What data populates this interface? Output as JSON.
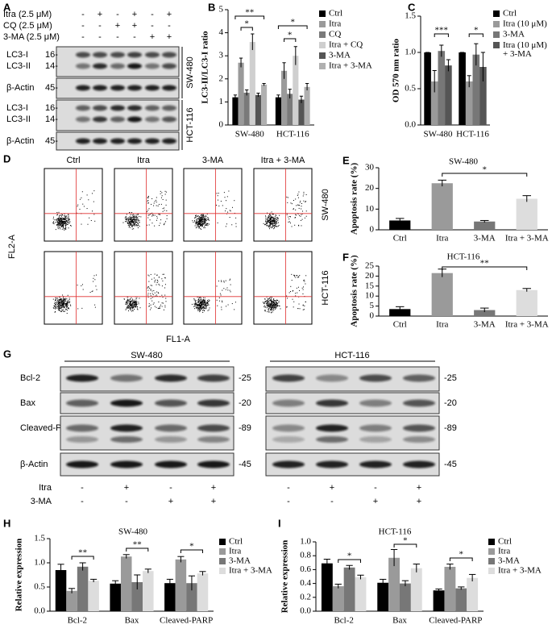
{
  "chart_data": [
    {
      "type": "bar",
      "label": "B",
      "ylabel": "LC3-II/LC3-I ratio",
      "categories": [
        "SW-480",
        "HCT-116"
      ],
      "ylim": [
        0,
        5
      ],
      "yticks": [
        0,
        1,
        2,
        3,
        4,
        5
      ],
      "series": [
        {
          "name": "Ctrl",
          "color": "#000000",
          "values": [
            1.2,
            1.2
          ],
          "errors": [
            0.1,
            0.1
          ]
        },
        {
          "name": "Itra",
          "color": "#9a9a9a",
          "values": [
            2.7,
            2.35
          ],
          "errors": [
            0.2,
            0.35
          ]
        },
        {
          "name": "CQ",
          "color": "#7a7a7a",
          "values": [
            1.4,
            1.35
          ],
          "errors": [
            0.12,
            0.2
          ]
        },
        {
          "name": "Itra + CQ",
          "color": "#cfcfcf",
          "values": [
            3.6,
            3.0
          ],
          "errors": [
            0.35,
            0.4
          ]
        },
        {
          "name": "3-MA",
          "color": "#555555",
          "values": [
            1.3,
            1.1
          ],
          "errors": [
            0.08,
            0.15
          ]
        },
        {
          "name": "Itra + 3-MA",
          "color": "#b0b0b0",
          "values": [
            1.75,
            1.65
          ],
          "errors": [
            0.05,
            0.15
          ]
        }
      ],
      "annotations": [
        "*",
        "**",
        "*",
        "*"
      ]
    },
    {
      "type": "bar",
      "label": "C",
      "ylabel": "OD 570 nm ratio",
      "categories": [
        "SW-480",
        "HCT-116"
      ],
      "ylim": [
        0,
        1.5
      ],
      "yticks": [
        {
          "value": 0,
          "label": "0.0"
        },
        0.5,
        {
          "value": 1,
          "label": "1.0"
        },
        1.5
      ],
      "series": [
        {
          "name": "Ctrl",
          "color": "#000000",
          "values": [
            1.0,
            1.0
          ],
          "errors": [
            0,
            0
          ]
        },
        {
          "name": "Itra (10 μM)",
          "color": "#9a9a9a",
          "values": [
            0.6,
            0.6
          ],
          "errors": [
            0.15,
            0.08
          ]
        },
        {
          "name": "3-MA",
          "color": "#777777",
          "values": [
            1.02,
            0.97
          ],
          "errors": [
            0.08,
            0.15
          ]
        },
        {
          "name": "Itra (10 μM) + 3-MA",
          "color": "#555555",
          "values": [
            0.82,
            0.8
          ],
          "errors": [
            0.08,
            0.2
          ]
        }
      ],
      "annotations": [
        "***",
        "*"
      ]
    },
    {
      "type": "bar",
      "label": "E",
      "title": "SW-480",
      "ylabel": "Apoptosis rate (%)",
      "categories": [
        "Ctrl",
        "Itra",
        "3-MA",
        "Itra + 3-MA"
      ],
      "values": [
        4.5,
        22.5,
        4,
        15
      ],
      "errors": [
        1,
        1.5,
        0.5,
        1.5
      ],
      "colors": [
        "#000000",
        "#9a9a9a",
        "#777777",
        "#dddddd"
      ],
      "ylim": [
        0,
        30
      ],
      "yticks": [
        0,
        10,
        20,
        30
      ],
      "annotations": [
        "*"
      ]
    },
    {
      "type": "bar",
      "label": "F",
      "title": "HCT-116",
      "ylabel": "Apoptosis rate (%)",
      "categories": [
        "Ctrl",
        "Itra",
        "3-MA",
        "Itra + 3-MA"
      ],
      "values": [
        3.5,
        21.5,
        3,
        13
      ],
      "errors": [
        1.2,
        2,
        1,
        0.8
      ],
      "colors": [
        "#000000",
        "#9a9a9a",
        "#777777",
        "#dddddd"
      ],
      "ylim": [
        0,
        25
      ],
      "yticks": [
        0,
        5,
        10,
        15,
        20,
        25
      ],
      "annotations": [
        "**"
      ]
    },
    {
      "type": "bar",
      "label": "H",
      "title": "SW-480",
      "ylabel": "Relative expression",
      "categories": [
        "Bcl-2",
        "Bax",
        "Cleaved-PARP"
      ],
      "ylim": [
        0,
        1.5
      ],
      "yticks": [
        {
          "value": 0,
          "label": "0.0"
        },
        0.5,
        {
          "value": 1,
          "label": "1.0"
        },
        1.5
      ],
      "series": [
        {
          "name": "Ctrl",
          "color": "#000000",
          "values": [
            0.85,
            0.57,
            0.58
          ],
          "errors": [
            0.12,
            0.06,
            0.08
          ]
        },
        {
          "name": "Itra",
          "color": "#9a9a9a",
          "values": [
            0.42,
            1.13,
            1.07
          ],
          "errors": [
            0.05,
            0.04,
            0.06
          ]
        },
        {
          "name": "3-MA",
          "color": "#777777",
          "values": [
            0.92,
            0.6,
            0.58
          ],
          "errors": [
            0.08,
            0.15,
            0.15
          ]
        },
        {
          "name": "Itra + 3-MA",
          "color": "#dddddd",
          "values": [
            0.63,
            0.83,
            0.78
          ],
          "errors": [
            0.03,
            0.04,
            0.04
          ]
        }
      ],
      "annotations": [
        "**",
        "**",
        "*"
      ]
    },
    {
      "type": "bar",
      "label": "I",
      "title": "HCT-116",
      "ylabel": "Relative expression",
      "categories": [
        "Bcl-2",
        "Bax",
        "Cleaved-PARP"
      ],
      "ylim": [
        0,
        1
      ],
      "yticks": [
        {
          "value": 0,
          "label": "0.0"
        },
        0.2,
        0.4,
        0.6,
        0.8,
        {
          "value": 1,
          "label": "1.0"
        }
      ],
      "series": [
        {
          "name": "Ctrl",
          "color": "#000000",
          "values": [
            0.69,
            0.41,
            0.3
          ],
          "errors": [
            0.06,
            0.05,
            0.02
          ]
        },
        {
          "name": "Itra",
          "color": "#9a9a9a",
          "values": [
            0.36,
            0.77,
            0.64
          ],
          "errors": [
            0.03,
            0.12,
            0.04
          ]
        },
        {
          "name": "3-MA",
          "color": "#777777",
          "values": [
            0.63,
            0.4,
            0.33
          ],
          "errors": [
            0.03,
            0.04,
            0.02
          ]
        },
        {
          "name": "Itra + 3-MA",
          "color": "#dddddd",
          "values": [
            0.49,
            0.62,
            0.48
          ],
          "errors": [
            0.03,
            0.06,
            0.05
          ]
        }
      ],
      "annotations": [
        "*",
        "*",
        "*"
      ]
    }
  ],
  "panel_a": {
    "label": "A",
    "treatments": [
      {
        "name": "Itra (2.5 μM)",
        "signs": [
          "-",
          "+",
          "-",
          "+",
          "-",
          "+"
        ]
      },
      {
        "name": "CQ (2.5 μM)",
        "signs": [
          "-",
          "-",
          "+",
          "+",
          "-",
          "-"
        ]
      },
      {
        "name": "3-MA (2.5 μM)",
        "signs": [
          "-",
          "-",
          "-",
          "-",
          "+",
          "+"
        ]
      }
    ],
    "blots": [
      {
        "cell_line": "SW-480",
        "rows": [
          {
            "names": [
              "LC3-I",
              "LC3-II"
            ],
            "markers": [
              "16-",
              "14-"
            ]
          },
          {
            "names": [
              "β-Actin"
            ],
            "markers": [
              "45-"
            ]
          }
        ]
      },
      {
        "cell_line": "HCT-116",
        "rows": [
          {
            "names": [
              "LC3-I",
              "LC3-II"
            ],
            "markers": [
              "16-",
              "14-"
            ]
          },
          {
            "names": [
              "β-Actin"
            ],
            "markers": [
              "45-"
            ]
          }
        ]
      }
    ]
  },
  "panel_d": {
    "label": "D",
    "columns": [
      "Ctrl",
      "Itra",
      "3-MA",
      "Itra + 3-MA"
    ],
    "rows": [
      "SW-480",
      "HCT-116"
    ],
    "y_axis": "FL2-A",
    "x_axis": "FL1-A"
  },
  "panel_g": {
    "label": "G",
    "proteins": [
      "Bcl-2",
      "Bax",
      "Cleaved-PARP",
      "β-Actin"
    ],
    "blots": [
      {
        "cell_line": "SW-480",
        "markers": [
          "-25",
          "-20",
          "-89",
          "-45"
        ]
      },
      {
        "cell_line": "HCT-116",
        "markers": [
          "-25",
          "-20",
          "-89",
          "-45"
        ]
      }
    ],
    "treatments": [
      {
        "name": "Itra",
        "signs": [
          "-",
          "+",
          "-",
          "+",
          "-",
          "+",
          "-",
          "+"
        ]
      },
      {
        "name": "3-MA",
        "signs": [
          "-",
          "-",
          "+",
          "+",
          "-",
          "-",
          "+",
          "+"
        ]
      }
    ]
  }
}
